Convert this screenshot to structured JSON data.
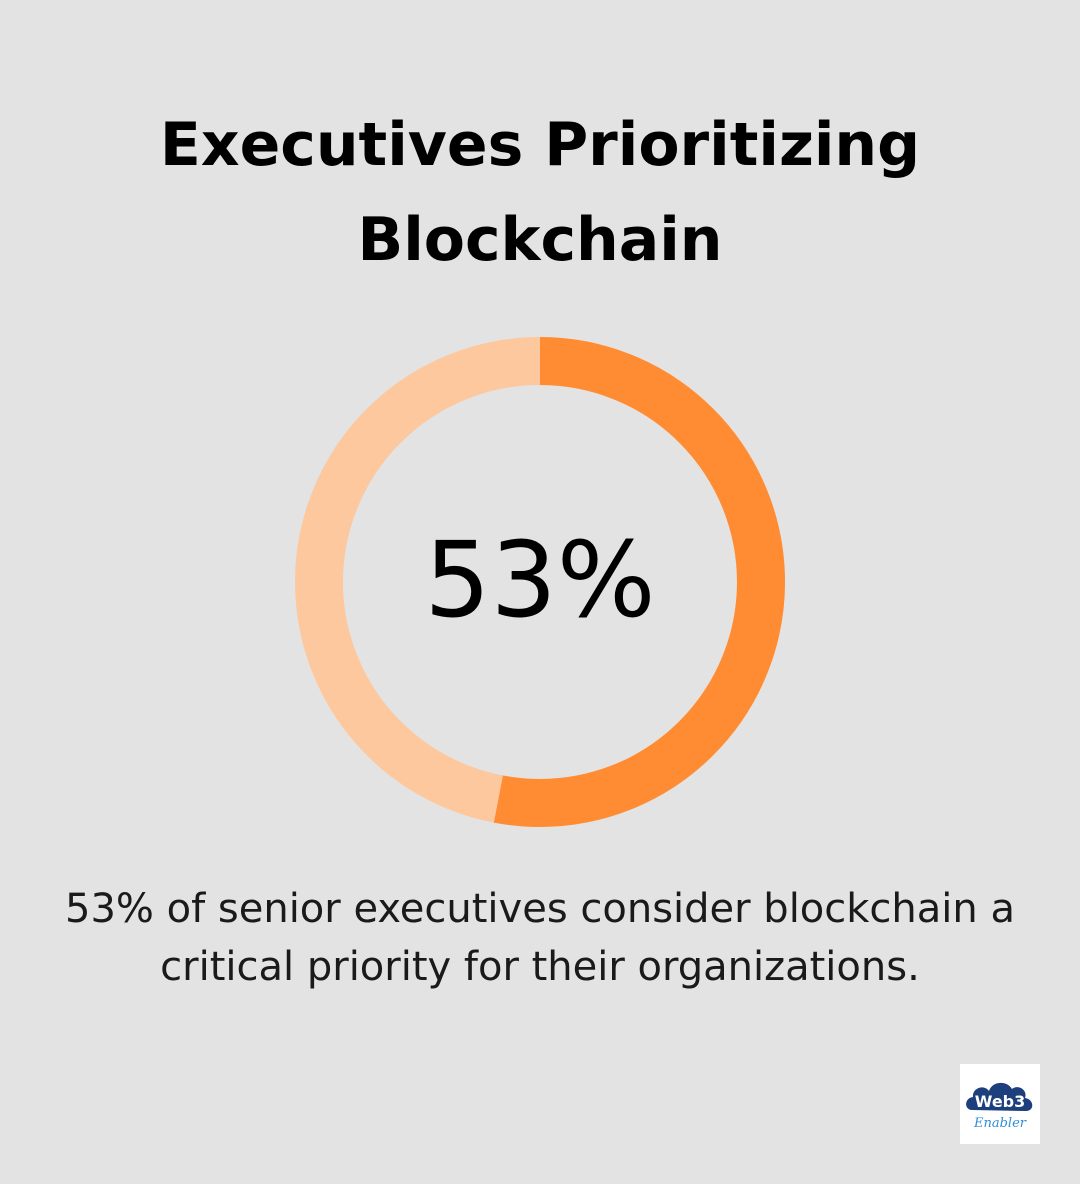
{
  "title": "Executives Prioritizing Blockchain",
  "caption": "53% of senior executives consider blockchain a critical priority for their organizations.",
  "logo_text": "Web3 Enabler",
  "colors": {
    "background": "#e2e3e2",
    "filled": "#ff8c33",
    "remaining": "#fec89e",
    "logo_cloud": "#1d3f7c",
    "logo_script": "#2f8fd6"
  },
  "chart_data": {
    "type": "pie",
    "style": "donut",
    "center_label": "53%",
    "slices": [
      {
        "value": 53
      },
      {
        "value": 47
      }
    ]
  }
}
